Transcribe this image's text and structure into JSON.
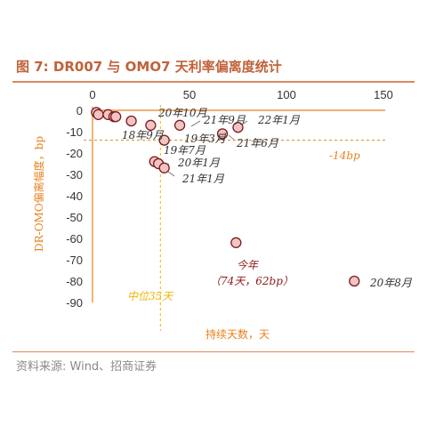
{
  "figure_title": "图 7:  DR007 与 OMO7 天利率偏离度统计",
  "source": "资料来源:  Wind、招商证券",
  "chart_data": {
    "type": "scatter",
    "xlabel": "持续天数，天",
    "ylabel": "DR-OMO偏离幅度，bp",
    "xlim": [
      0,
      150
    ],
    "ylim": [
      -90,
      0
    ],
    "xticks": [
      "0",
      "50",
      "100",
      "150"
    ],
    "yticks": [
      "0",
      "-10",
      "-20",
      "-30",
      "-40",
      "-50",
      "-60",
      "-70",
      "-80",
      "-90"
    ],
    "grid": false,
    "points": [
      {
        "x": 2,
        "y": -1
      },
      {
        "x": 3,
        "y": -2
      },
      {
        "x": 8,
        "y": -2
      },
      {
        "x": 11,
        "y": -3
      },
      {
        "x": 12,
        "y": -3
      },
      {
        "x": 20,
        "y": -5
      },
      {
        "x": 30,
        "y": -7
      },
      {
        "x": 45,
        "y": -7
      },
      {
        "x": 67,
        "y": -11
      },
      {
        "x": 75,
        "y": -8
      },
      {
        "x": 37,
        "y": -14
      },
      {
        "x": 32,
        "y": -24
      },
      {
        "x": 34,
        "y": -25
      },
      {
        "x": 37,
        "y": -27
      },
      {
        "x": 74,
        "y": -62
      },
      {
        "x": 135,
        "y": -80
      }
    ],
    "reference_lines": {
      "horizontal": {
        "y": -14,
        "label": "-14bp"
      },
      "vertical": {
        "x": 35,
        "label": "中位35天"
      }
    },
    "annotations": [
      {
        "text": "20年10月",
        "style": "plain"
      },
      {
        "text": "21年9月",
        "style": "plain"
      },
      {
        "text": "22年1月",
        "style": "plain"
      },
      {
        "text": "18年9月",
        "style": "plain"
      },
      {
        "text": "19年3月",
        "style": "plain"
      },
      {
        "text": "21年6月",
        "style": "plain"
      },
      {
        "text": "19年7月",
        "style": "plain"
      },
      {
        "text": "20年1月",
        "style": "plain"
      },
      {
        "text": "21年1月",
        "style": "plain"
      },
      {
        "text": "今年",
        "style": "red"
      },
      {
        "text": "（74天，62bp）",
        "style": "red"
      },
      {
        "text": "20年8月",
        "style": "plain"
      }
    ],
    "colors": {
      "marker_fill": "#f2c4c4",
      "marker_stroke": "#7a1a1a",
      "axis": "#e8821e",
      "hline": "#e8821e",
      "vline": "#f0b400",
      "title": "#c0623a"
    }
  }
}
